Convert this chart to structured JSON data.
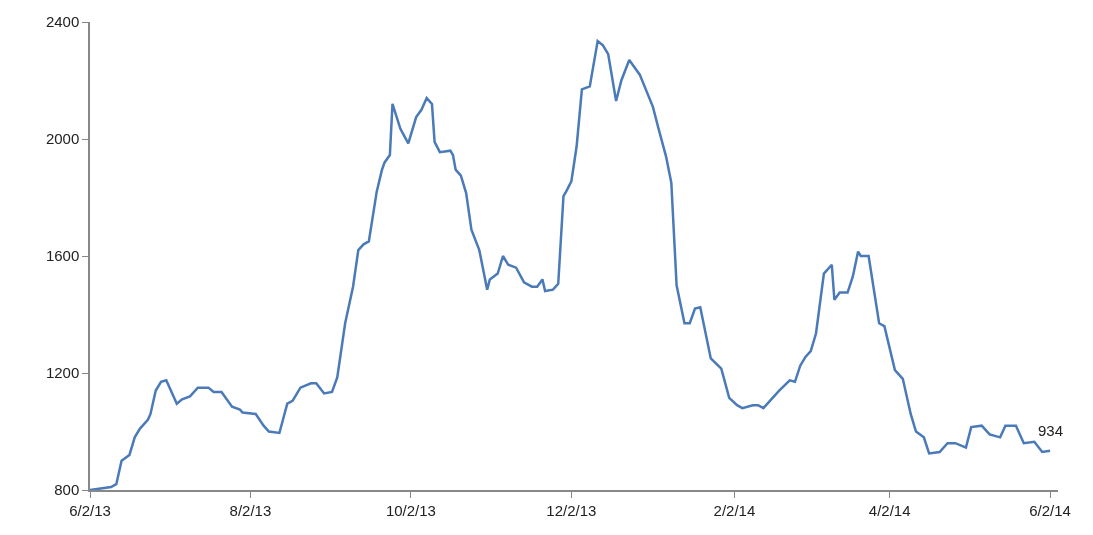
{
  "chart_data": {
    "type": "line",
    "x": [
      "2013-06-02",
      "2013-06-10",
      "2013-06-12",
      "2013-06-14",
      "2013-06-17",
      "2013-06-19",
      "2013-06-21",
      "2013-06-24",
      "2013-06-25",
      "2013-06-27",
      "2013-06-29",
      "2013-07-01",
      "2013-07-05",
      "2013-07-07",
      "2013-07-10",
      "2013-07-13",
      "2013-07-17",
      "2013-07-19",
      "2013-07-22",
      "2013-07-26",
      "2013-07-29",
      "2013-07-30",
      "2013-08-04",
      "2013-08-07",
      "2013-08-09",
      "2013-08-13",
      "2013-08-16",
      "2013-08-18",
      "2013-08-21",
      "2013-08-25",
      "2013-08-27",
      "2013-08-30",
      "2013-09-02",
      "2013-09-04",
      "2013-09-07",
      "2013-09-10",
      "2013-09-12",
      "2013-09-14",
      "2013-09-16",
      "2013-09-19",
      "2013-09-21",
      "2013-09-22",
      "2013-09-24",
      "2013-09-25",
      "2013-09-28",
      "2013-10-01",
      "2013-10-04",
      "2013-10-06",
      "2013-10-08",
      "2013-10-10",
      "2013-10-11",
      "2013-10-13",
      "2013-10-17",
      "2013-10-18",
      "2013-10-19",
      "2013-10-21",
      "2013-10-23",
      "2013-10-25",
      "2013-10-28",
      "2013-10-31",
      "2013-11-01",
      "2013-11-04",
      "2013-11-06",
      "2013-11-08",
      "2013-11-11",
      "2013-11-14",
      "2013-11-17",
      "2013-11-19",
      "2013-11-21",
      "2013-11-22",
      "2013-11-25",
      "2013-11-27",
      "2013-11-29",
      "2013-11-30",
      "2013-12-02",
      "2013-12-04",
      "2013-12-06",
      "2013-12-09",
      "2013-12-12",
      "2013-12-14",
      "2013-12-16",
      "2013-12-19",
      "2013-12-21",
      "2013-12-24",
      "2013-12-28",
      "2014-01-02",
      "2014-01-04",
      "2014-01-07",
      "2014-01-09",
      "2014-01-11",
      "2014-01-14",
      "2014-01-16",
      "2014-01-18",
      "2014-01-20",
      "2014-01-24",
      "2014-01-28",
      "2014-01-31",
      "2014-02-03",
      "2014-02-05",
      "2014-02-09",
      "2014-02-11",
      "2014-02-13",
      "2014-02-16",
      "2014-02-19",
      "2014-02-23",
      "2014-02-25",
      "2014-02-27",
      "2014-03-01",
      "2014-03-03",
      "2014-03-05",
      "2014-03-08",
      "2014-03-11",
      "2014-03-12",
      "2014-03-14",
      "2014-03-17",
      "2014-03-19",
      "2014-03-21",
      "2014-03-22",
      "2014-03-25",
      "2014-03-29",
      "2014-03-31",
      "2014-04-04",
      "2014-04-07",
      "2014-04-10",
      "2014-04-12",
      "2014-04-15",
      "2014-04-17",
      "2014-04-21",
      "2014-04-24",
      "2014-04-27",
      "2014-05-01",
      "2014-05-03",
      "2014-05-07",
      "2014-05-10",
      "2014-05-14",
      "2014-05-16",
      "2014-05-20",
      "2014-05-23",
      "2014-05-27",
      "2014-05-30",
      "2014-06-02"
    ],
    "series": [
      {
        "color": "#4a7ab8",
        "values": [
          800,
          810,
          820,
          900,
          920,
          980,
          1010,
          1040,
          1060,
          1140,
          1170,
          1175,
          1095,
          1110,
          1120,
          1150,
          1150,
          1135,
          1135,
          1085,
          1075,
          1065,
          1060,
          1020,
          1000,
          995,
          1095,
          1105,
          1150,
          1165,
          1165,
          1130,
          1135,
          1185,
          1370,
          1495,
          1620,
          1640,
          1650,
          1820,
          1895,
          1920,
          1945,
          2120,
          2035,
          1985,
          2075,
          2100,
          2140,
          2120,
          1990,
          1955,
          1960,
          1945,
          1895,
          1875,
          1815,
          1690,
          1620,
          1485,
          1520,
          1540,
          1600,
          1570,
          1560,
          1510,
          1495,
          1495,
          1520,
          1480,
          1485,
          1505,
          1805,
          1820,
          1855,
          1975,
          2170,
          2180,
          2335,
          2320,
          2290,
          2130,
          2200,
          2270,
          2220,
          2110,
          2040,
          1940,
          1850,
          1500,
          1370,
          1370,
          1420,
          1425,
          1250,
          1215,
          1115,
          1090,
          1080,
          1090,
          1090,
          1080,
          1110,
          1140,
          1175,
          1170,
          1225,
          1255,
          1275,
          1335,
          1540,
          1570,
          1450,
          1475,
          1475,
          1530,
          1615,
          1600,
          1600,
          1370,
          1360,
          1210,
          1180,
          1060,
          1000,
          980,
          925,
          930,
          960,
          960,
          945,
          1015,
          1020,
          990,
          980,
          1020,
          1020,
          960,
          965,
          930,
          934
        ]
      }
    ],
    "annotations": [
      {
        "text": "934",
        "x": "2014-06-02",
        "y": 934
      }
    ],
    "xlim": [
      "2013-06-02",
      "2014-06-05"
    ],
    "xticks": [
      {
        "value": "2013-06-02",
        "label": "6/2/13"
      },
      {
        "value": "2013-08-02",
        "label": "8/2/13"
      },
      {
        "value": "2013-10-02",
        "label": "10/2/13"
      },
      {
        "value": "2013-12-02",
        "label": "12/2/13"
      },
      {
        "value": "2014-02-02",
        "label": "2/2/14"
      },
      {
        "value": "2014-04-02",
        "label": "4/2/14"
      },
      {
        "value": "2014-06-02",
        "label": "6/2/14"
      }
    ],
    "ylim": [
      800,
      2400
    ],
    "yticks": [
      800,
      1200,
      1600,
      2000,
      2400
    ],
    "marker": "none",
    "line_style": "solid"
  }
}
